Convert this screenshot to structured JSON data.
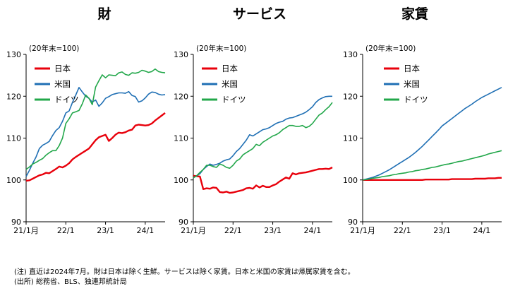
{
  "chart_data": [
    {
      "type": "line",
      "title": "財",
      "unit_note": "(20年末=100)",
      "ylim": [
        90,
        130
      ],
      "yticks": [
        90,
        100,
        110,
        120,
        130
      ],
      "xticks": [
        {
          "x": 0,
          "label": "21/1月"
        },
        {
          "x": 12,
          "label": "22/1"
        },
        {
          "x": 24,
          "label": "23/1"
        },
        {
          "x": 36,
          "label": "24/1"
        }
      ],
      "xlim": [
        0,
        42
      ],
      "legend": "top-left",
      "series": [
        {
          "name": "日本",
          "color": "#e8000b",
          "values": [
            99.8,
            99.9,
            100.3,
            100.7,
            101.1,
            101.3,
            101.7,
            101.6,
            102.1,
            102.6,
            103.2,
            103.0,
            103.4,
            104.0,
            104.9,
            105.5,
            106.0,
            106.5,
            107.0,
            107.5,
            108.5,
            109.5,
            110.2,
            110.5,
            110.8,
            109.3,
            110.0,
            110.8,
            111.3,
            111.2,
            111.4,
            111.8,
            112.0,
            113.0,
            113.2,
            113.1,
            113.0,
            113.1,
            113.5,
            114.2,
            114.8,
            115.4,
            116.0
          ]
        },
        {
          "name": "米国",
          "color": "#1f6fb4",
          "values": [
            100.8,
            102.3,
            104.0,
            105.5,
            107.5,
            108.3,
            108.7,
            109.2,
            110.6,
            111.8,
            112.5,
            114.0,
            116.0,
            116.5,
            118.5,
            120.3,
            122.1,
            121.0,
            120.0,
            119.5,
            118.6,
            119.1,
            117.6,
            118.4,
            119.5,
            119.9,
            120.4,
            120.6,
            120.8,
            120.8,
            120.7,
            121.1,
            120.2,
            119.9,
            118.6,
            118.9,
            119.6,
            120.5,
            121.0,
            120.9,
            120.5,
            120.3,
            120.4
          ]
        },
        {
          "name": "ドイツ",
          "color": "#22a74a",
          "values": [
            102.5,
            103.1,
            103.8,
            104.2,
            104.7,
            105.1,
            105.9,
            106.5,
            107.0,
            107.0,
            108.2,
            110.0,
            113.5,
            114.6,
            116.0,
            116.3,
            116.6,
            118.2,
            120.3,
            119.5,
            118.0,
            122.2,
            123.7,
            125.1,
            124.4,
            125.1,
            125.0,
            124.9,
            125.6,
            125.8,
            125.2,
            125.0,
            125.6,
            125.5,
            125.7,
            126.2,
            126.0,
            125.7,
            125.9,
            126.5,
            125.9,
            125.7,
            125.6
          ]
        }
      ]
    },
    {
      "type": "line",
      "title": "サービス",
      "unit_note": "(20年末=100)",
      "ylim": [
        90,
        130
      ],
      "yticks": [
        90,
        100,
        110,
        120,
        130
      ],
      "xticks": [
        {
          "x": 0,
          "label": "21/1月"
        },
        {
          "x": 12,
          "label": "22/1"
        },
        {
          "x": 24,
          "label": "23/1"
        },
        {
          "x": 36,
          "label": "24/1"
        }
      ],
      "xlim": [
        0,
        42
      ],
      "legend": "top-left",
      "series": [
        {
          "name": "日本",
          "color": "#e8000b",
          "values": [
            101.0,
            100.9,
            100.8,
            97.8,
            98.0,
            97.9,
            98.2,
            98.1,
            97.1,
            97.0,
            97.2,
            96.9,
            97.0,
            97.2,
            97.4,
            97.6,
            98.0,
            98.1,
            97.9,
            98.7,
            98.2,
            98.6,
            98.3,
            98.3,
            98.7,
            99.0,
            99.6,
            100.1,
            100.6,
            100.3,
            101.6,
            101.3,
            101.6,
            101.7,
            101.8,
            102.0,
            102.2,
            102.4,
            102.6,
            102.6,
            102.7,
            102.6,
            103.0
          ]
        },
        {
          "name": "米国",
          "color": "#1f6fb4",
          "values": [
            100.5,
            101.0,
            101.5,
            102.5,
            103.2,
            103.8,
            103.5,
            103.7,
            104.0,
            104.5,
            104.8,
            105.0,
            105.8,
            106.8,
            107.5,
            108.5,
            109.5,
            110.8,
            110.5,
            111.0,
            111.5,
            112.0,
            112.2,
            112.5,
            113.0,
            113.5,
            113.8,
            114.0,
            114.5,
            114.8,
            114.9,
            115.2,
            115.5,
            115.8,
            116.2,
            116.8,
            117.5,
            118.5,
            119.2,
            119.6,
            119.9,
            120.0,
            120.0
          ]
        },
        {
          "name": "ドイツ",
          "color": "#22a74a",
          "values": [
            100.5,
            101.0,
            101.8,
            102.5,
            103.5,
            103.5,
            103.2,
            103.0,
            103.8,
            103.5,
            103.0,
            102.8,
            103.5,
            104.5,
            105.0,
            106.0,
            106.5,
            107.0,
            107.5,
            108.5,
            108.2,
            109.0,
            109.5,
            110.0,
            110.5,
            110.8,
            111.3,
            112.0,
            112.5,
            113.0,
            113.0,
            112.8,
            112.8,
            113.0,
            112.5,
            112.8,
            113.5,
            114.5,
            115.5,
            116.0,
            116.8,
            117.5,
            118.5
          ]
        }
      ]
    },
    {
      "type": "line",
      "title": "家賃",
      "unit_note": "(20年末=100)",
      "ylim": [
        90,
        130
      ],
      "yticks": [
        90,
        100,
        110,
        120,
        130
      ],
      "xticks": [
        {
          "x": 0,
          "label": "21/1月"
        },
        {
          "x": 12,
          "label": "22/1"
        },
        {
          "x": 24,
          "label": "23/1"
        },
        {
          "x": 36,
          "label": "24/1"
        }
      ],
      "xlim": [
        0,
        42
      ],
      "legend": "top-left",
      "series": [
        {
          "name": "日本",
          "color": "#e8000b",
          "values": [
            100.0,
            100.0,
            100.0,
            100.0,
            100.0,
            100.0,
            100.0,
            100.0,
            100.0,
            100.0,
            100.0,
            100.0,
            100.0,
            100.0,
            100.0,
            100.0,
            100.0,
            100.0,
            100.0,
            100.1,
            100.1,
            100.1,
            100.1,
            100.1,
            100.1,
            100.1,
            100.1,
            100.2,
            100.2,
            100.2,
            100.2,
            100.2,
            100.2,
            100.2,
            100.3,
            100.3,
            100.3,
            100.3,
            100.4,
            100.4,
            100.4,
            100.5,
            100.5
          ]
        },
        {
          "name": "米国",
          "color": "#1f6fb4",
          "values": [
            100.0,
            100.2,
            100.4,
            100.6,
            100.9,
            101.2,
            101.6,
            102.0,
            102.4,
            102.9,
            103.4,
            103.9,
            104.4,
            104.9,
            105.4,
            106.0,
            106.6,
            107.3,
            108.0,
            108.8,
            109.6,
            110.4,
            111.2,
            112.0,
            112.9,
            113.5,
            114.1,
            114.7,
            115.3,
            115.9,
            116.5,
            117.1,
            117.6,
            118.1,
            118.7,
            119.2,
            119.7,
            120.1,
            120.5,
            120.9,
            121.3,
            121.7,
            122.1
          ]
        },
        {
          "name": "ドイツ",
          "color": "#22a74a",
          "values": [
            100.0,
            100.1,
            100.2,
            100.4,
            100.5,
            100.6,
            100.8,
            100.9,
            101.0,
            101.2,
            101.3,
            101.5,
            101.6,
            101.7,
            101.9,
            102.0,
            102.2,
            102.3,
            102.5,
            102.6,
            102.8,
            103.0,
            103.1,
            103.3,
            103.5,
            103.7,
            103.8,
            104.0,
            104.2,
            104.4,
            104.5,
            104.7,
            104.9,
            105.1,
            105.3,
            105.5,
            105.7,
            105.9,
            106.2,
            106.4,
            106.6,
            106.8,
            107.0
          ]
        }
      ]
    }
  ],
  "notes": {
    "line1": "(注) 直近は2024年7月。財は日本は除く生鮮。サービスは除く家賃。日本と米国の家賃は帰属家賃を含む。",
    "line2": "(出所) 総務省、BLS、独連邦統計局"
  }
}
